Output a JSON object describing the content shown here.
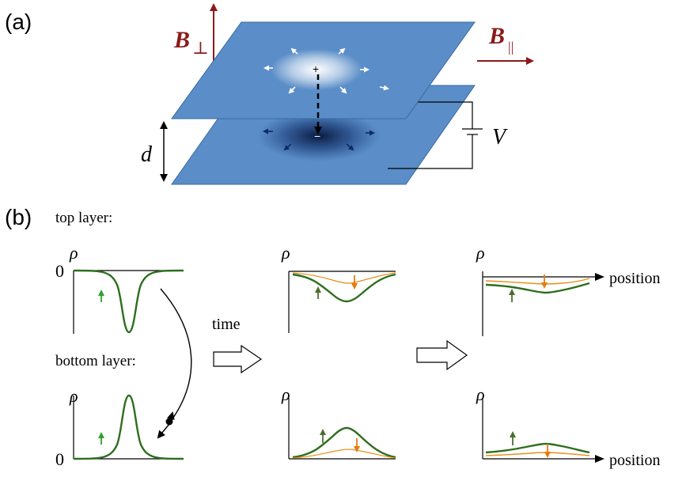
{
  "panel_a": {
    "label": "(a)",
    "b_perp": {
      "symbol": "B",
      "subscript": "⊥"
    },
    "b_par": {
      "symbol": "B",
      "subscript": "||"
    },
    "distance_label": "d",
    "voltage_label": "V",
    "plus_sign": "+",
    "minus_sign": "−"
  },
  "panel_b": {
    "label": "(b)",
    "top_layer_label": "top layer:",
    "bottom_layer_label": "bottom layer:",
    "time_label": "time",
    "position_label": "position",
    "rho_label": "ρ",
    "zero_label": "0"
  },
  "colors": {
    "field_arrow": "#8b1a1a",
    "plane": "#5b8ec8",
    "top_curve": "#2e6e1e",
    "thin_curve": "#e8901c",
    "green_arrow": "#2fa12f",
    "dark_green_arrow": "#4b6e2e",
    "orange_arrow": "#e87a10"
  }
}
